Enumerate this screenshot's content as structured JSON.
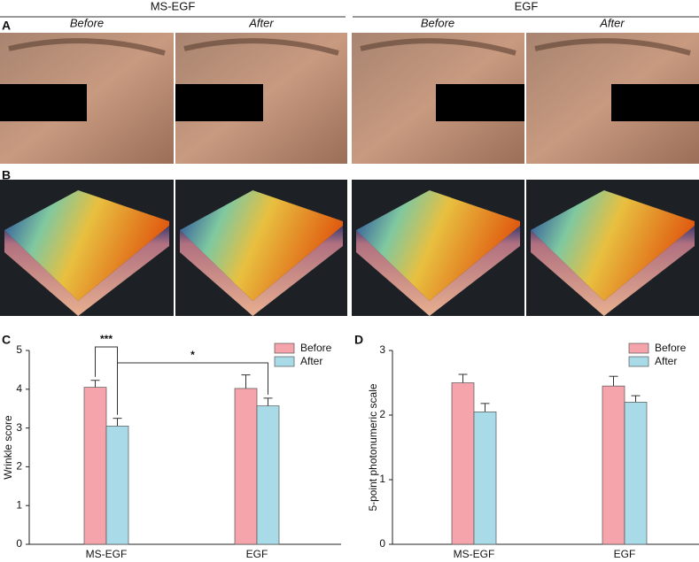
{
  "figure": {
    "groups": [
      {
        "title": "MS-EGF",
        "labels": [
          "Before",
          "After"
        ]
      },
      {
        "title": "EGF",
        "labels": [
          "Before",
          "After"
        ]
      }
    ],
    "panels": [
      "A",
      "B"
    ]
  },
  "chart_data": [
    {
      "type": "bar",
      "panel": "C",
      "ylabel": "Wrinkle score",
      "categories": [
        "MS-EGF",
        "EGF"
      ],
      "series": [
        {
          "name": "Before",
          "color": "#f4a4aa",
          "values": [
            4.05,
            4.02
          ],
          "errors": [
            0.18,
            0.35
          ]
        },
        {
          "name": "After",
          "color": "#a8dbe7",
          "values": [
            3.05,
            3.57
          ],
          "errors": [
            0.2,
            0.2
          ]
        }
      ],
      "ylim": [
        0,
        5
      ],
      "yticks": [
        0,
        1,
        2,
        3,
        4,
        5
      ],
      "legend": "upper right",
      "annotations": [
        "***",
        "*"
      ]
    },
    {
      "type": "bar",
      "panel": "D",
      "ylabel": "5-point photonumeric scale",
      "categories": [
        "MS-EGF",
        "EGF"
      ],
      "series": [
        {
          "name": "Before",
          "color": "#f4a4aa",
          "values": [
            2.5,
            2.45
          ],
          "errors": [
            0.13,
            0.15
          ]
        },
        {
          "name": "After",
          "color": "#a8dbe7",
          "values": [
            2.05,
            2.2
          ],
          "errors": [
            0.13,
            0.1
          ]
        }
      ],
      "ylim": [
        0,
        3
      ],
      "yticks": [
        0,
        1,
        2,
        3
      ],
      "legend": "upper right"
    }
  ]
}
